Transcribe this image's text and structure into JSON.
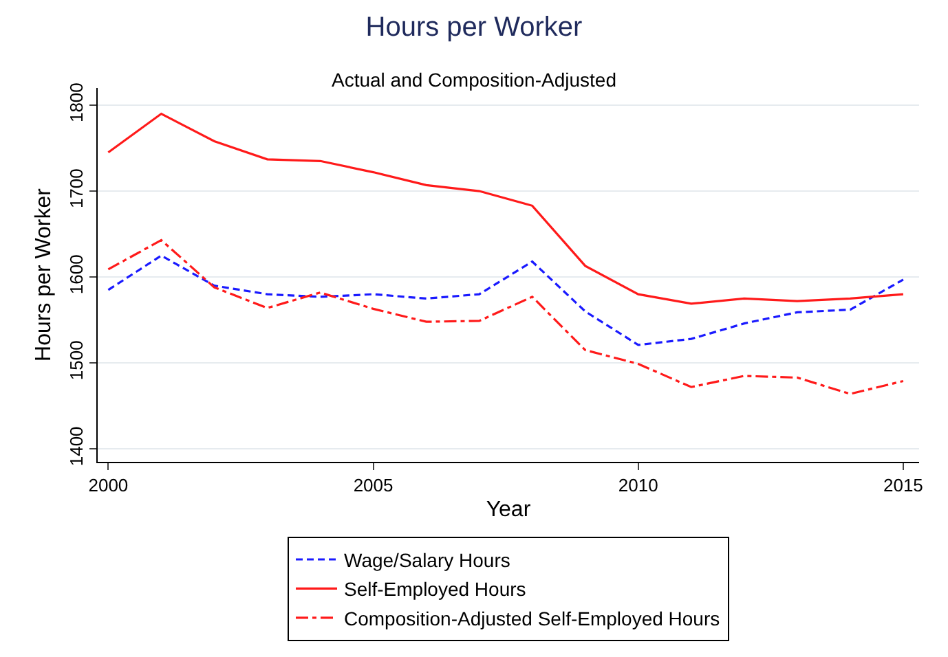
{
  "chart_data": {
    "type": "line",
    "title": "Hours per Worker",
    "subtitle": "Actual and Composition-Adjusted",
    "xlabel": "Year",
    "ylabel": "Hours per Worker",
    "x": [
      2000,
      2001,
      2002,
      2003,
      2004,
      2005,
      2006,
      2007,
      2008,
      2009,
      2010,
      2011,
      2012,
      2013,
      2014,
      2015
    ],
    "series": [
      {
        "name": "Wage/Salary Hours",
        "color": "#1a1aff",
        "line_style": "dashed",
        "values": [
          1585,
          1625,
          1590,
          1580,
          1577,
          1580,
          1575,
          1580,
          1618,
          1560,
          1521,
          1528,
          1546,
          1559,
          1562,
          1597
        ]
      },
      {
        "name": "Self-Employed Hours",
        "color": "#ff1a1a",
        "line_style": "solid",
        "values": [
          1745,
          1790,
          1758,
          1737,
          1735,
          1722,
          1707,
          1700,
          1683,
          1613,
          1580,
          1569,
          1575,
          1572,
          1575,
          1580
        ]
      },
      {
        "name": "Composition-Adjusted Self-Employed Hours",
        "color": "#ff1a1a",
        "line_style": "dashdot",
        "values": [
          1609,
          1643,
          1588,
          1564,
          1582,
          1563,
          1548,
          1549,
          1577,
          1515,
          1499,
          1472,
          1485,
          1483,
          1464,
          1479
        ]
      }
    ],
    "xlim": [
      1999.8,
      2015.3
    ],
    "ylim": [
      1385,
      1820
    ],
    "xticks": [
      2000,
      2005,
      2010,
      2015
    ],
    "yticks": [
      1400,
      1500,
      1600,
      1700,
      1800
    ],
    "grid": "y",
    "legend": "bottom",
    "marker": "none"
  }
}
